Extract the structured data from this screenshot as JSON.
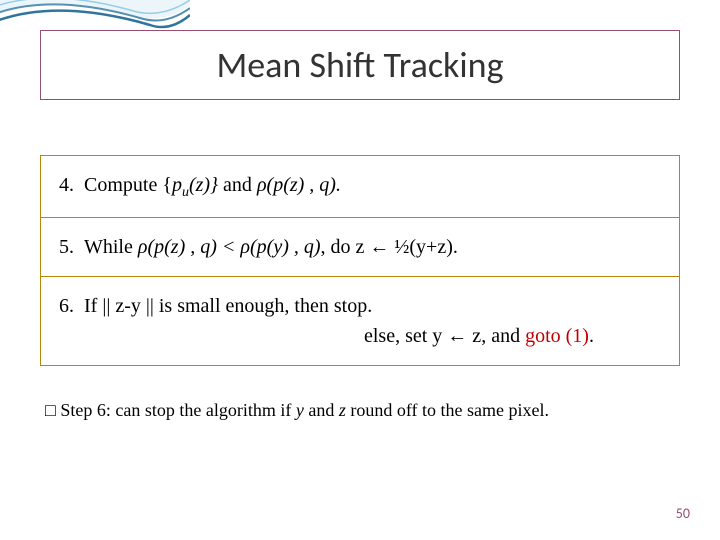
{
  "colors": {
    "title_border": "#954f72",
    "title_text": "#333333",
    "content_border": "#b8860b",
    "body_text": "#000000",
    "goto_color": "#c00000",
    "page_num_color": "#954f72",
    "wave_outer": "#0b5c8a",
    "wave_inner": "#5fb3d9",
    "background": "#ffffff"
  },
  "fontsizes": {
    "title": 36,
    "body": 20,
    "footnote": 18,
    "page_num": 14
  },
  "title": "Mean Shift Tracking",
  "steps": [
    {
      "num": "4.",
      "parts": [
        {
          "t": "Compute {",
          "i": false
        },
        {
          "t": "p",
          "i": true
        },
        {
          "t": "u",
          "i": true,
          "sub": true
        },
        {
          "t": "(z)}",
          "i": true
        },
        {
          "t": "  and  ",
          "i": false
        },
        {
          "t": "ρ(p(z) , q).",
          "i": true
        }
      ]
    },
    {
      "num": "5.",
      "parts": [
        {
          "t": "While ",
          "i": false
        },
        {
          "t": "ρ(p(z) , q) < ρ(p(y) , q)",
          "i": true
        },
        {
          "t": ", do z  ←  ½(y+z).",
          "i": false
        }
      ]
    },
    {
      "num": "6.",
      "parts": [
        {
          "t": "If  || z-y || is small enough, then stop.",
          "i": false
        }
      ],
      "line2": [
        {
          "t": "else, set y ← z, and ",
          "i": false
        },
        {
          "t": "goto (1)",
          "i": false,
          "goto": true
        },
        {
          "t": ".",
          "i": false
        }
      ],
      "line2_indent": "305px"
    }
  ],
  "footnote_prefix": "□ ",
  "footnote_parts": [
    {
      "t": "Step 6: can stop the algorithm if ",
      "i": false
    },
    {
      "t": "y",
      "i": true
    },
    {
      "t": " and ",
      "i": false
    },
    {
      "t": "z",
      "i": true
    },
    {
      "t": " round off to the same pixel.",
      "i": false
    }
  ],
  "page_number": "50"
}
